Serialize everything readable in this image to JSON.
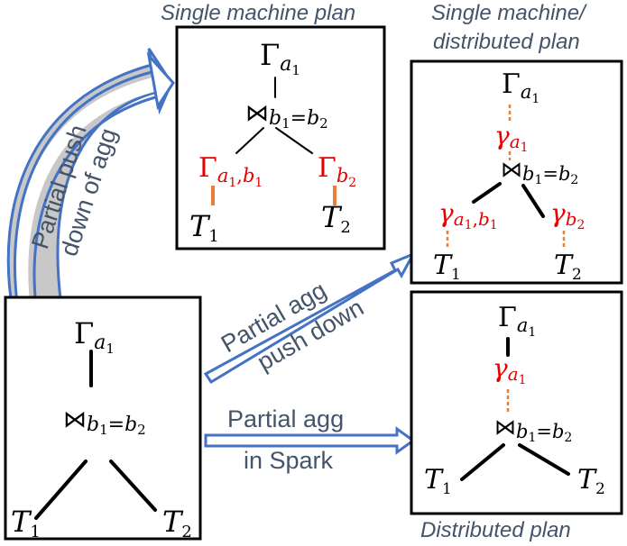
{
  "captions": {
    "single_machine": "Single machine plan",
    "single_distributed_line1": "Single machine/",
    "single_distributed_line2": "distributed plan",
    "distributed": "Distributed plan"
  },
  "arrows": {
    "push_down_line1": "Partial push",
    "push_down_line2": "down of agg",
    "agg_push_line1": "Partial agg",
    "agg_push_line2": "push down",
    "spark_line1": "Partial agg",
    "spark_line2": "in Spark"
  },
  "symbols": {
    "gamma": "Γ",
    "partial_gamma": "γ",
    "join": "⋈",
    "join_condition_main": "b",
    "join_sub_1": "1",
    "join_eq": "=b",
    "join_sub_2": "2",
    "a1": "a",
    "sub_1": "1",
    "a1b1": "a",
    "b": "b",
    "T": "T",
    "comma": ",",
    "two": "2"
  },
  "colors": {
    "caption": "#44546a",
    "arrow_outline": "#4472c4",
    "partial_agg": "#e60000",
    "push_edge": "#ed7d31"
  }
}
